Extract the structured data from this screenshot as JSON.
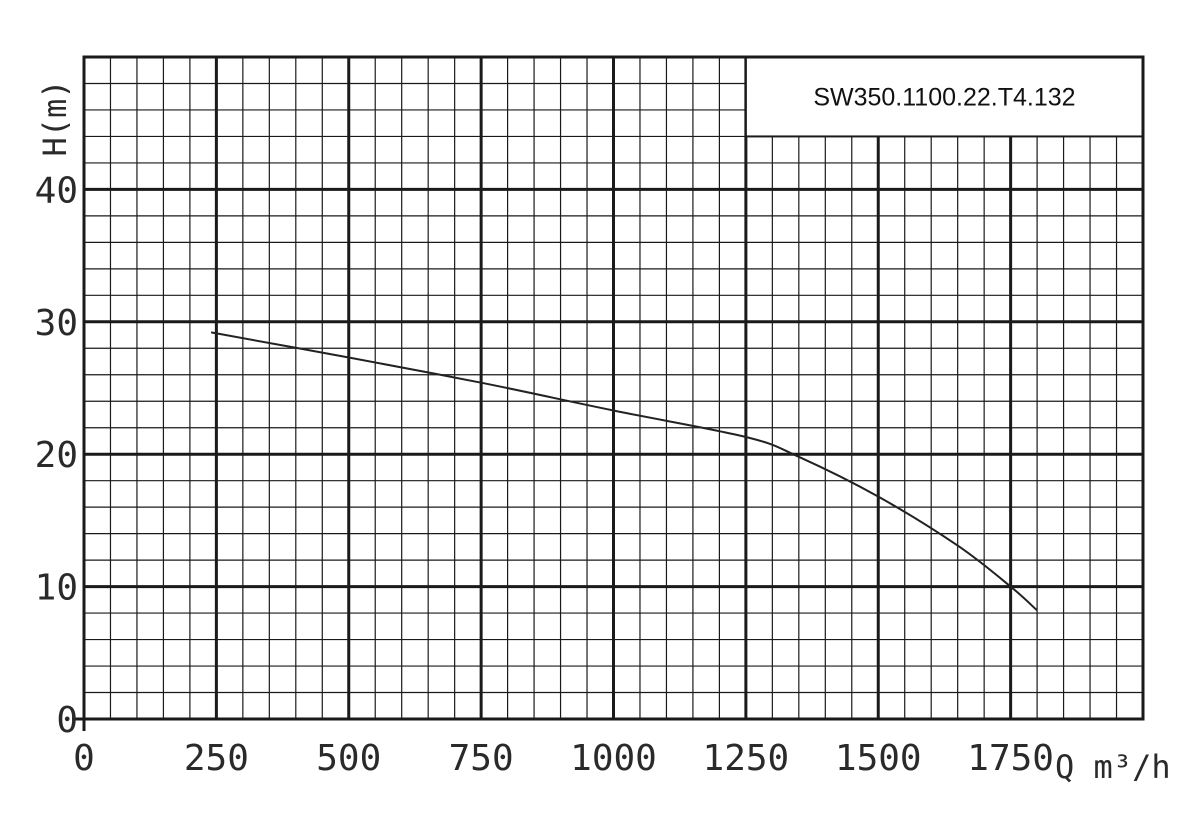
{
  "chart_data": {
    "type": "line",
    "title": "SW350.1100.22.T4.132",
    "xlabel": "Q m³/h",
    "ylabel": "H(m)",
    "xlim": [
      0,
      2000
    ],
    "ylim": [
      0,
      50
    ],
    "x_ticks": [
      "0",
      "250",
      "500",
      "750",
      "1000",
      "1250",
      "1500",
      "1750"
    ],
    "y_ticks": [
      "0",
      "10",
      "20",
      "30",
      "40"
    ],
    "grid": true,
    "series": [
      {
        "x": [
          240,
          500,
          750,
          1000,
          1250,
          1350,
          1500,
          1650,
          1750,
          1800
        ],
        "y": [
          29.2,
          27.3,
          25.4,
          23.3,
          21.3,
          19.8,
          16.8,
          13.1,
          10.0,
          8.2
        ]
      }
    ],
    "colors": {
      "curve": "#222222",
      "grid": "#1a1a1a"
    }
  }
}
